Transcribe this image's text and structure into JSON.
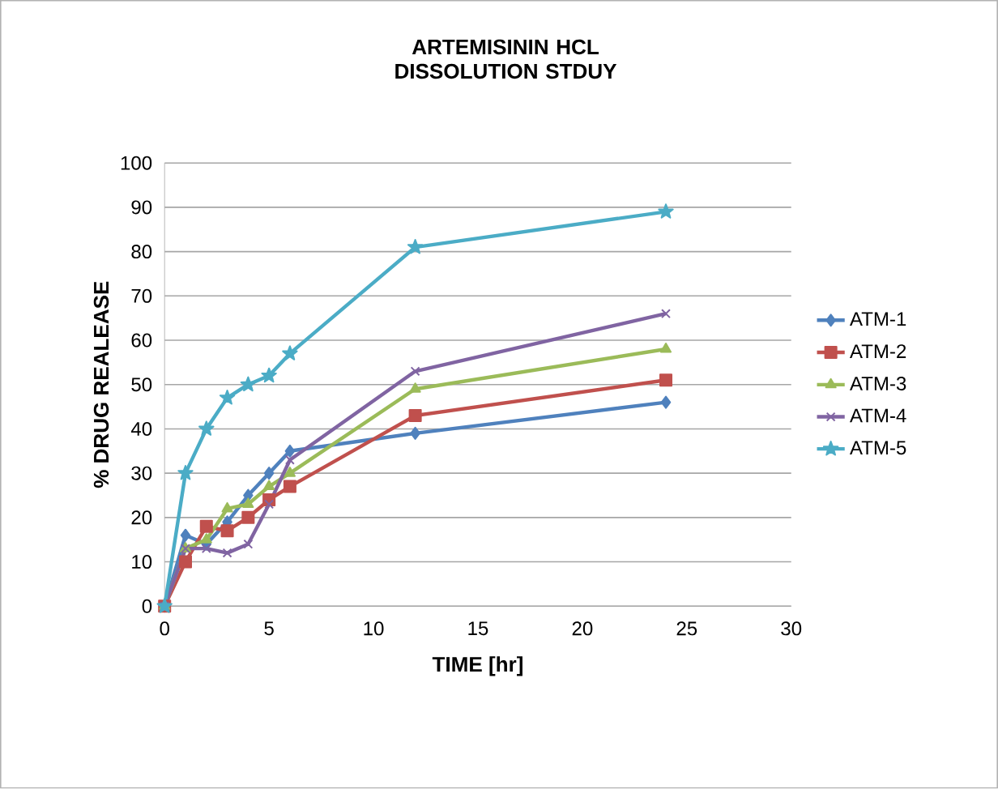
{
  "chart_data": {
    "type": "line",
    "title": "ARTEMISININ HCL DISSOLUTION STDUY",
    "xlabel": "TIME [hr]",
    "ylabel": "% DRUG REALEASE",
    "x": [
      0,
      1,
      2,
      3,
      4,
      5,
      6,
      12,
      24
    ],
    "series": [
      {
        "name": "ATM-1",
        "color": "#4f81bd",
        "marker": "diamond",
        "values": [
          0,
          16,
          14,
          19,
          25,
          30,
          35,
          39,
          46
        ]
      },
      {
        "name": "ATM-2",
        "color": "#c0504d",
        "marker": "square",
        "values": [
          0,
          10,
          18,
          17,
          20,
          24,
          27,
          43,
          51
        ]
      },
      {
        "name": "ATM-3",
        "color": "#9bbb59",
        "marker": "triangle",
        "values": [
          0,
          13,
          15,
          22,
          23,
          27,
          30,
          49,
          58
        ]
      },
      {
        "name": "ATM-4",
        "color": "#8064a2",
        "marker": "cross",
        "values": [
          0,
          13,
          13,
          12,
          14,
          23,
          33,
          53,
          66
        ]
      },
      {
        "name": "ATM-5",
        "color": "#4bacc6",
        "marker": "star",
        "values": [
          0,
          30,
          40,
          47,
          50,
          52,
          57,
          81,
          89
        ]
      }
    ],
    "xlim": [
      0,
      30
    ],
    "ylim": [
      0,
      100
    ],
    "xticks": [
      0,
      5,
      10,
      15,
      20,
      25,
      30
    ],
    "yticks": [
      0,
      10,
      20,
      30,
      40,
      50,
      60,
      70,
      80,
      90,
      100
    ],
    "grid": "y",
    "legend": "right"
  }
}
